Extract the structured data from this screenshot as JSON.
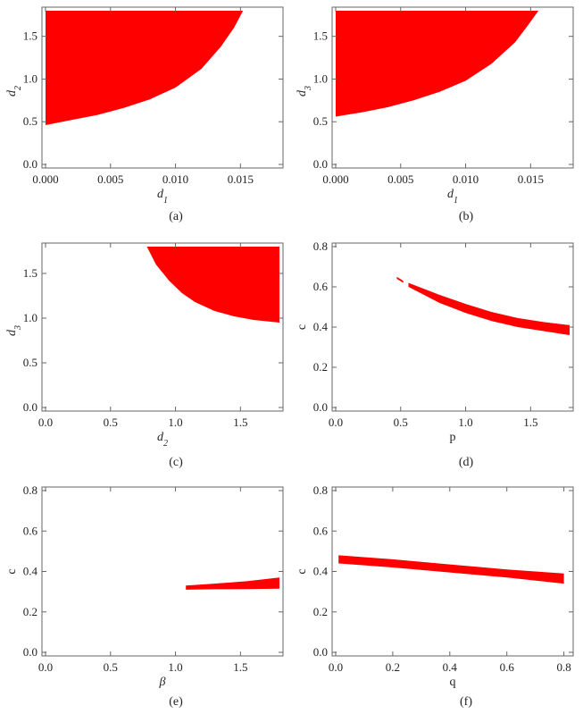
{
  "chart_data": [
    {
      "type": "area",
      "panel": "(a)",
      "caption": "(a)",
      "xlabel": "d1",
      "xlabel_base": "d",
      "xlabel_sub": "1",
      "ylabel": "d2",
      "ylabel_base": "d",
      "ylabel_sub": "2",
      "xlim": [
        0,
        0.018
      ],
      "ylim": [
        0,
        1.8
      ],
      "xticks": [
        0,
        0.005,
        0.01,
        0.015
      ],
      "xticklabels": [
        "0.000",
        "0.005",
        "0.010",
        "0.015"
      ],
      "yticks": [
        0,
        0.5,
        1.0,
        1.5
      ],
      "yticklabels": [
        "0.0",
        "0.5",
        "1.0",
        "1.5"
      ],
      "region": {
        "upper": [
          [
            0,
            1.8
          ],
          [
            0.0152,
            1.8
          ]
        ],
        "lower": [
          [
            0,
            0.46
          ],
          [
            0.002,
            0.52
          ],
          [
            0.004,
            0.58
          ],
          [
            0.006,
            0.66
          ],
          [
            0.008,
            0.76
          ],
          [
            0.01,
            0.9
          ],
          [
            0.012,
            1.12
          ],
          [
            0.0135,
            1.38
          ],
          [
            0.0145,
            1.6
          ],
          [
            0.0152,
            1.8
          ]
        ]
      }
    },
    {
      "type": "area",
      "panel": "(b)",
      "caption": "(b)",
      "xlabel": "d1",
      "xlabel_base": "d",
      "xlabel_sub": "1",
      "ylabel": "d3",
      "ylabel_base": "d",
      "ylabel_sub": "3",
      "xlim": [
        0,
        0.018
      ],
      "ylim": [
        0,
        1.8
      ],
      "xticks": [
        0,
        0.005,
        0.01,
        0.015
      ],
      "xticklabels": [
        "0.000",
        "0.005",
        "0.010",
        "0.015"
      ],
      "yticks": [
        0,
        0.5,
        1.0,
        1.5
      ],
      "yticklabels": [
        "0.0",
        "0.5",
        "1.0",
        "1.5"
      ],
      "region": {
        "upper": [
          [
            0,
            1.8
          ],
          [
            0.0156,
            1.8
          ]
        ],
        "lower": [
          [
            0,
            0.56
          ],
          [
            0.002,
            0.61
          ],
          [
            0.004,
            0.67
          ],
          [
            0.006,
            0.75
          ],
          [
            0.008,
            0.85
          ],
          [
            0.01,
            0.98
          ],
          [
            0.012,
            1.18
          ],
          [
            0.0138,
            1.43
          ],
          [
            0.0148,
            1.63
          ],
          [
            0.0156,
            1.8
          ]
        ]
      }
    },
    {
      "type": "area",
      "panel": "(c)",
      "caption": "(c)",
      "xlabel": "d2",
      "xlabel_base": "d",
      "xlabel_sub": "2",
      "ylabel": "d3",
      "ylabel_base": "d",
      "ylabel_sub": "3",
      "xlim": [
        0,
        1.8
      ],
      "ylim": [
        0,
        1.8
      ],
      "xticks": [
        0,
        0.5,
        1.0,
        1.5
      ],
      "xticklabels": [
        "0.0",
        "0.5",
        "1.0",
        "1.5"
      ],
      "yticks": [
        0,
        0.5,
        1.0,
        1.5
      ],
      "yticklabels": [
        "0.0",
        "0.5",
        "1.0",
        "1.5"
      ],
      "region": {
        "upper": [
          [
            0.78,
            1.8
          ],
          [
            1.8,
            1.8
          ]
        ],
        "lower": [
          [
            0.78,
            1.8
          ],
          [
            0.85,
            1.6
          ],
          [
            0.95,
            1.42
          ],
          [
            1.05,
            1.28
          ],
          [
            1.15,
            1.18
          ],
          [
            1.3,
            1.08
          ],
          [
            1.45,
            1.02
          ],
          [
            1.6,
            0.98
          ],
          [
            1.8,
            0.95
          ]
        ]
      }
    },
    {
      "type": "area",
      "panel": "(d)",
      "caption": "(d)",
      "xlabel": "p",
      "xlabel_base": "p",
      "xlabel_sub": "",
      "ylabel": "c",
      "ylabel_base": "c",
      "ylabel_sub": "",
      "xlim": [
        0,
        1.8
      ],
      "ylim": [
        0,
        0.8
      ],
      "xticks": [
        0,
        0.5,
        1.0,
        1.5
      ],
      "xticklabels": [
        "0.0",
        "0.5",
        "1.0",
        "1.5"
      ],
      "yticks": [
        0,
        0.2,
        0.4,
        0.6,
        0.8
      ],
      "yticklabels": [
        "0.0",
        "0.2",
        "0.4",
        "0.6",
        "0.8"
      ],
      "region": {
        "segments": [
          {
            "upper": [
              [
                0.47,
                0.65
              ],
              [
                0.52,
                0.63
              ]
            ],
            "lower": [
              [
                0.47,
                0.64
              ],
              [
                0.52,
                0.62
              ]
            ]
          },
          {
            "upper": [
              [
                0.56,
                0.62
              ],
              [
                0.8,
                0.56
              ],
              [
                1.0,
                0.515
              ],
              [
                1.2,
                0.475
              ],
              [
                1.4,
                0.445
              ],
              [
                1.6,
                0.425
              ],
              [
                1.8,
                0.41
              ]
            ],
            "lower": [
              [
                0.56,
                0.6
              ],
              [
                0.8,
                0.52
              ],
              [
                1.0,
                0.47
              ],
              [
                1.2,
                0.43
              ],
              [
                1.4,
                0.4
              ],
              [
                1.6,
                0.38
              ],
              [
                1.8,
                0.36
              ]
            ]
          }
        ]
      }
    },
    {
      "type": "area",
      "panel": "(e)",
      "caption": "(e)",
      "xlabel": "β",
      "xlabel_base": "β",
      "xlabel_sub": "",
      "ylabel": "c",
      "ylabel_base": "c",
      "ylabel_sub": "",
      "xlim": [
        0,
        1.8
      ],
      "ylim": [
        0,
        0.8
      ],
      "xticks": [
        0,
        0.5,
        1.0,
        1.5
      ],
      "xticklabels": [
        "0.0",
        "0.5",
        "1.0",
        "1.5"
      ],
      "yticks": [
        0,
        0.2,
        0.4,
        0.6,
        0.8
      ],
      "yticklabels": [
        "0.0",
        "0.2",
        "0.4",
        "0.6",
        "0.8"
      ],
      "region": {
        "upper": [
          [
            1.08,
            0.33
          ],
          [
            1.3,
            0.34
          ],
          [
            1.55,
            0.352
          ],
          [
            1.8,
            0.37
          ]
        ],
        "lower": [
          [
            1.08,
            0.31
          ],
          [
            1.3,
            0.312
          ],
          [
            1.55,
            0.313
          ],
          [
            1.8,
            0.315
          ]
        ]
      }
    },
    {
      "type": "area",
      "panel": "(f)",
      "caption": "(f)",
      "xlabel": "q",
      "xlabel_base": "q",
      "xlabel_sub": "",
      "ylabel": "c",
      "ylabel_base": "c",
      "ylabel_sub": "",
      "xlim": [
        0,
        0.82
      ],
      "ylim": [
        0,
        0.8
      ],
      "xticks": [
        0,
        0.2,
        0.4,
        0.6,
        0.8
      ],
      "xticklabels": [
        "0.0",
        "0.2",
        "0.4",
        "0.6",
        "0.8"
      ],
      "yticks": [
        0,
        0.2,
        0.4,
        0.6,
        0.8
      ],
      "yticklabels": [
        "0.0",
        "0.2",
        "0.4",
        "0.6",
        "0.8"
      ],
      "region": {
        "upper": [
          [
            0.01,
            0.48
          ],
          [
            0.2,
            0.46
          ],
          [
            0.4,
            0.435
          ],
          [
            0.6,
            0.41
          ],
          [
            0.8,
            0.39
          ]
        ],
        "lower": [
          [
            0.01,
            0.44
          ],
          [
            0.2,
            0.42
          ],
          [
            0.4,
            0.395
          ],
          [
            0.6,
            0.37
          ],
          [
            0.8,
            0.34
          ]
        ]
      }
    }
  ],
  "colors": {
    "region": "#ff0000",
    "frame": "#666666",
    "text": "#222222"
  }
}
